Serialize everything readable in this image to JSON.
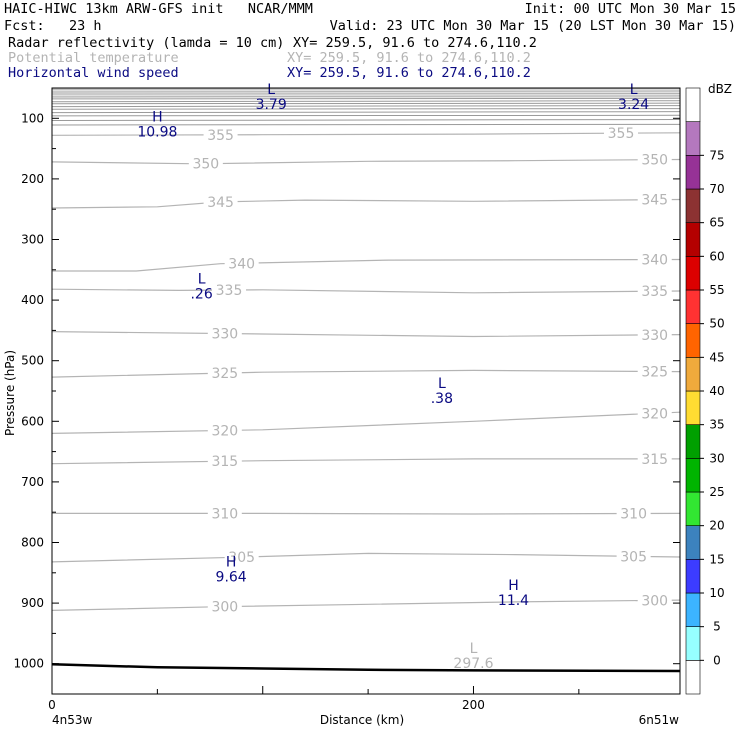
{
  "header": {
    "model": "HAIC-HIWC 13km ARW-GFS init   NCAR/MMM",
    "init": "Init: 00 UTC Mon 30 Mar 15",
    "fcst": "Fcst:   23 h",
    "valid": "Valid: 23 UTC Mon 30 Mar 15 (20 LST Mon 30 Mar 15)",
    "fields": [
      {
        "name": "Radar reflectivity (lamda = 10 cm)",
        "xy": "XY= 259.5, 91.6 to 274.6,110.2",
        "color": "#000000"
      },
      {
        "name": "Potential temperature",
        "xy": "XY= 259.5, 91.6 to 274.6,110.2",
        "color": "#b4b4b4"
      },
      {
        "name": "Horizontal wind speed",
        "xy": "XY= 259.5, 91.6 to 274.6,110.2",
        "color": "#0a0a82"
      }
    ]
  },
  "chart_data": {
    "type": "contour cross-section",
    "xlabel": "Distance (km)",
    "ylabel": "Pressure (hPa)",
    "x_ticks": [
      0,
      200
    ],
    "x_end_labels": [
      "4n53w",
      "6n51w"
    ],
    "xlim": [
      0,
      298
    ],
    "ylim": [
      1050,
      50
    ],
    "y_ticks": [
      100,
      200,
      300,
      400,
      500,
      600,
      700,
      800,
      900,
      1000
    ],
    "theta_contours": [
      {
        "level": 355,
        "pts": [
          [
            0,
            128
          ],
          [
            100,
            127
          ],
          [
            200,
            126
          ],
          [
            298,
            124
          ]
        ],
        "labels": [
          {
            "text": "355",
            "x": 80
          },
          {
            "text": "355",
            "x": 270
          }
        ]
      },
      {
        "level": 350,
        "pts": [
          [
            0,
            172
          ],
          [
            70,
            175
          ],
          [
            150,
            171
          ],
          [
            220,
            170
          ],
          [
            298,
            168
          ]
        ],
        "labels": [
          {
            "text": "350",
            "x": 73
          },
          {
            "text": "350",
            "x": 286
          }
        ]
      },
      {
        "level": 345,
        "pts": [
          [
            0,
            248
          ],
          [
            50,
            246
          ],
          [
            80,
            238
          ],
          [
            120,
            235
          ],
          [
            200,
            237
          ],
          [
            298,
            234
          ]
        ],
        "labels": [
          {
            "text": "345",
            "x": 80
          },
          {
            "text": "345",
            "x": 286
          }
        ]
      },
      {
        "level": 340,
        "pts": [
          [
            0,
            352
          ],
          [
            40,
            352
          ],
          [
            80,
            340
          ],
          [
            160,
            334
          ],
          [
            298,
            333
          ]
        ],
        "labels": [
          {
            "text": "340",
            "x": 90
          },
          {
            "text": "340",
            "x": 286
          }
        ]
      },
      {
        "level": 335,
        "pts": [
          [
            0,
            382
          ],
          [
            60,
            384
          ],
          [
            100,
            383
          ],
          [
            200,
            388
          ],
          [
            298,
            385
          ]
        ],
        "labels": [
          {
            "text": "335",
            "x": 84
          },
          {
            "text": "335",
            "x": 286
          }
        ]
      },
      {
        "level": 330,
        "pts": [
          [
            0,
            452
          ],
          [
            100,
            456
          ],
          [
            200,
            460
          ],
          [
            298,
            457
          ]
        ],
        "labels": [
          {
            "text": "330",
            "x": 82
          },
          {
            "text": "330",
            "x": 286
          }
        ]
      },
      {
        "level": 325,
        "pts": [
          [
            0,
            527
          ],
          [
            100,
            519
          ],
          [
            200,
            516
          ],
          [
            298,
            518
          ]
        ],
        "labels": [
          {
            "text": "325",
            "x": 82
          },
          {
            "text": "325",
            "x": 286
          }
        ]
      },
      {
        "level": 320,
        "pts": [
          [
            0,
            620
          ],
          [
            100,
            614
          ],
          [
            200,
            600
          ],
          [
            298,
            585
          ]
        ],
        "labels": [
          {
            "text": "320",
            "x": 82
          },
          {
            "text": "320",
            "x": 286
          }
        ]
      },
      {
        "level": 315,
        "pts": [
          [
            0,
            670
          ],
          [
            100,
            665
          ],
          [
            200,
            662
          ],
          [
            298,
            662
          ]
        ],
        "labels": [
          {
            "text": "315",
            "x": 82
          },
          {
            "text": "315",
            "x": 286
          }
        ]
      },
      {
        "level": 310,
        "pts": [
          [
            0,
            752
          ],
          [
            100,
            752
          ],
          [
            200,
            753
          ],
          [
            298,
            752
          ]
        ],
        "labels": [
          {
            "text": "310",
            "x": 82
          },
          {
            "text": "310",
            "x": 276
          }
        ]
      },
      {
        "level": 305,
        "pts": [
          [
            0,
            832
          ],
          [
            80,
            825
          ],
          [
            150,
            818
          ],
          [
            220,
            820
          ],
          [
            298,
            824
          ]
        ],
        "labels": [
          {
            "text": "305",
            "x": 90
          },
          {
            "text": "305",
            "x": 276
          }
        ]
      },
      {
        "level": 300,
        "pts": [
          [
            0,
            912
          ],
          [
            80,
            906
          ],
          [
            150,
            902
          ],
          [
            220,
            898
          ],
          [
            298,
            895
          ]
        ],
        "labels": [
          {
            "text": "300",
            "x": 82
          },
          {
            "text": "300",
            "x": 286
          }
        ]
      }
    ],
    "top_band_lines": [
      52,
      56,
      60,
      64,
      68,
      72,
      76,
      80,
      85,
      90,
      96,
      103,
      111
    ],
    "extrema": [
      {
        "kind": "L",
        "value": "3.79",
        "x": 104,
        "p": 60,
        "color": "#0a0a82"
      },
      {
        "kind": "L",
        "value": "3.24",
        "x": 276,
        "p": 60,
        "color": "#0a0a82"
      },
      {
        "kind": "H",
        "value": "10.98",
        "x": 50,
        "p": 105,
        "color": "#0a0a82"
      },
      {
        "kind": "L",
        "value": ".26",
        "x": 71,
        "p": 373,
        "color": "#0a0a82"
      },
      {
        "kind": "L",
        "value": ".38",
        "x": 185,
        "p": 545,
        "color": "#0a0a82"
      },
      {
        "kind": "H",
        "value": "9.64",
        "x": 85,
        "p": 840,
        "color": "#0a0a82"
      },
      {
        "kind": "H",
        "value": "11.4",
        "x": 219,
        "p": 878,
        "color": "#0a0a82"
      },
      {
        "kind": "L",
        "value": "297.6",
        "x": 200,
        "p": 982,
        "color": "#b4b4b4"
      }
    ],
    "terrain": [
      [
        0,
        1001
      ],
      [
        20,
        1003
      ],
      [
        50,
        1006
      ],
      [
        100,
        1008
      ],
      [
        150,
        1010
      ],
      [
        200,
        1011
      ],
      [
        298,
        1012
      ]
    ]
  },
  "colorbar": {
    "unit": "dBZ",
    "colors": [
      "#ffffff",
      "#96ffff",
      "#3cb4ff",
      "#3c3cff",
      "#3c82be",
      "#32e632",
      "#00b400",
      "#00a000",
      "#ffdc32",
      "#f0aa3c",
      "#ff6400",
      "#ff3232",
      "#dc0000",
      "#b40000",
      "#8c3232",
      "#963296",
      "#b478be",
      "#ffffff"
    ],
    "labels": [
      "0",
      "5",
      "10",
      "15",
      "20",
      "25",
      "30",
      "35",
      "40",
      "45",
      "50",
      "55",
      "60",
      "65",
      "70",
      "75"
    ]
  }
}
